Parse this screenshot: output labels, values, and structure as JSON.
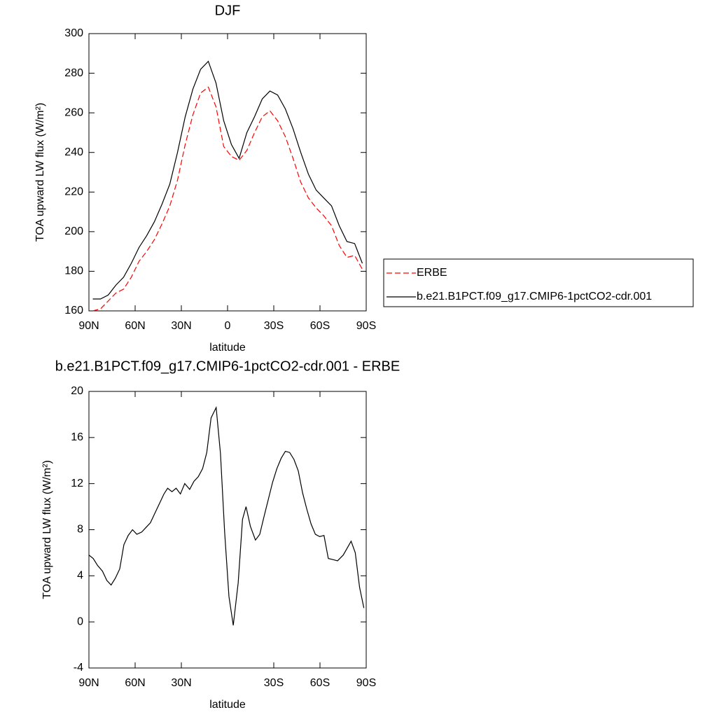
{
  "chart_data": [
    {
      "type": "line",
      "title": "DJF",
      "xlabel": "latitude",
      "ylabel": "TOA upward LW flux (W/m²)",
      "x": [
        87.5,
        82.5,
        77.5,
        72.5,
        67.5,
        62.5,
        57.5,
        52.5,
        47.5,
        42.5,
        37.5,
        32.5,
        27.5,
        22.5,
        17.5,
        12.5,
        7.5,
        2.5,
        -2.5,
        -7.5,
        -12.5,
        -17.5,
        -22.5,
        -27.5,
        -32.5,
        -37.5,
        -42.5,
        -47.5,
        -52.5,
        -57.5,
        -62.5,
        -67.5,
        -72.5,
        -77.5,
        -82.5,
        -87.5
      ],
      "series": [
        {
          "name": "ERBE",
          "color": "#ff0000",
          "linestyle": "dashed",
          "values": [
            160,
            161,
            165,
            169,
            171,
            177,
            185,
            190,
            196,
            204,
            213,
            226,
            244,
            259,
            270,
            273,
            263,
            243,
            238,
            236,
            241,
            250,
            258,
            261,
            256,
            248,
            237,
            225,
            217,
            212,
            208,
            203,
            193,
            187,
            188,
            181
          ]
        },
        {
          "name": "b.e21.B1PCT.f09_g17.CMIP6-1pctCO2-cdr.001",
          "color": "#000000",
          "linestyle": "solid",
          "values": [
            166,
            166,
            168,
            173,
            177,
            184,
            192,
            198,
            205,
            214,
            224,
            240,
            258,
            272,
            282,
            286,
            275,
            256,
            244,
            237,
            250,
            258,
            267,
            271,
            269,
            262,
            252,
            240,
            229,
            221,
            217,
            213,
            203,
            195,
            194,
            184
          ]
        }
      ],
      "xlim": [
        90,
        -90
      ],
      "ylim": [
        160,
        300
      ],
      "xticks": [
        {
          "value": 90,
          "label": "90N"
        },
        {
          "value": 60,
          "label": "60N"
        },
        {
          "value": 30,
          "label": "30N"
        },
        0,
        {
          "value": -30,
          "label": "30S"
        },
        {
          "value": -60,
          "label": "60S"
        },
        {
          "value": -90,
          "label": "90S"
        }
      ],
      "yticks": [
        160,
        180,
        200,
        220,
        240,
        260,
        280,
        300
      ],
      "legend": "right"
    },
    {
      "type": "line",
      "title": "b.e21.B1PCT.f09_g17.CMIP6-1pctCO2-cdr.001 - ERBE",
      "xlabel": "latitude",
      "ylabel": "TOA upward LW flux (W/m²)",
      "x": [
        90,
        87.2,
        84.4,
        81.2,
        78.4,
        75.6,
        72.8,
        70,
        67.3,
        64.5,
        61.7,
        58.9,
        55.7,
        52.9,
        50.1,
        47.3,
        44.1,
        41.3,
        38.9,
        36.1,
        33.4,
        30.6,
        27.8,
        24.6,
        21.8,
        19.0,
        16.2,
        13.5,
        10.7,
        7.4,
        4.6,
        1.9,
        -0.9,
        -3.7,
        -6.9,
        -9.7,
        -12,
        -14.8,
        -18.1,
        -20.9,
        -23.6,
        -26.4,
        -29.2,
        -32,
        -34.8,
        -37.5,
        -40.3,
        -43.1,
        -45.9,
        -48.7,
        -51.4,
        -54.2,
        -57,
        -59.8,
        -62.6,
        -65.4,
        -68.6,
        -71.4,
        -75.1,
        -80.2,
        -82.9,
        -85.7,
        -88.5
      ],
      "values": [
        5.8,
        5.5,
        4.9,
        4.4,
        3.6,
        3.2,
        3.8,
        4.6,
        6.7,
        7.5,
        8.0,
        7.6,
        7.8,
        8.2,
        8.6,
        9.4,
        10.3,
        11.1,
        11.6,
        11.3,
        11.6,
        11.1,
        12.0,
        11.5,
        12.2,
        12.6,
        13.3,
        14.7,
        17.7,
        18.6,
        14.6,
        7.8,
        2.2,
        -0.3,
        3.4,
        8.9,
        10.0,
        8.3,
        7.1,
        7.6,
        9.1,
        10.6,
        12.1,
        13.3,
        14.2,
        14.8,
        14.7,
        14.1,
        13.1,
        11.2,
        9.8,
        8.5,
        7.6,
        7.4,
        7.5,
        5.5,
        5.4,
        5.3,
        5.8,
        7.0,
        6.0,
        3.0,
        1.2
      ],
      "color": "#000000",
      "xlim": [
        90,
        -90
      ],
      "ylim": [
        -4,
        20
      ],
      "xticks": [
        {
          "value": 90,
          "label": "90N"
        },
        {
          "value": 60,
          "label": "60N"
        },
        {
          "value": 30,
          "label": "30N"
        },
        {
          "value": -30,
          "label": "30S"
        },
        {
          "value": -60,
          "label": "60S"
        },
        {
          "value": -90,
          "label": "90S"
        }
      ],
      "yticks": [
        -4,
        0,
        4,
        8,
        12,
        16,
        20
      ]
    }
  ]
}
